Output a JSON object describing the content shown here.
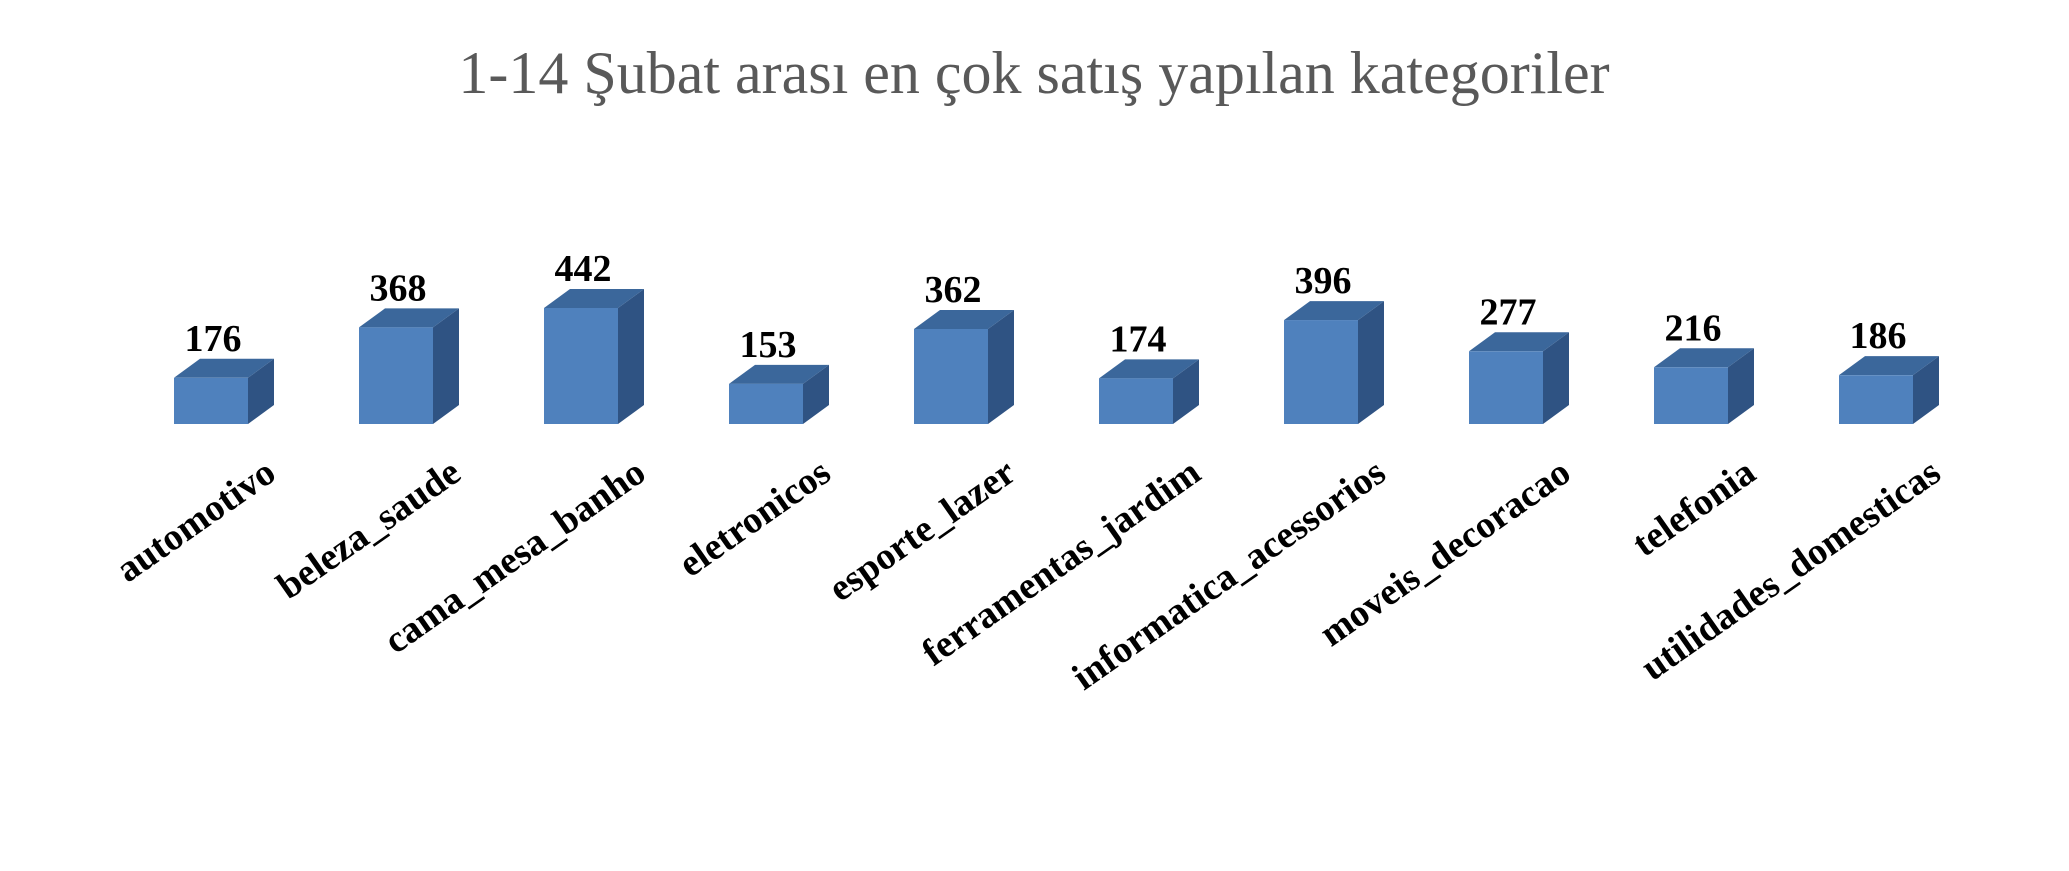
{
  "chart_data": {
    "type": "bar",
    "title": "1-14 Şubat arası en çok satış yapılan kategoriler",
    "categories": [
      "automotivo",
      "beleza_saude",
      "cama_mesa_banho",
      "eletronicos",
      "esporte_lazer",
      "ferramentas_jardim",
      "informatica_acessorios",
      "moveis_decoracao",
      "telefonia",
      "utilidades_domesticas"
    ],
    "values": [
      176,
      368,
      442,
      153,
      362,
      174,
      396,
      277,
      216,
      186
    ],
    "xlabel": "",
    "ylabel": "",
    "ylim": [
      0,
      442
    ],
    "grid": false,
    "legend": "none",
    "style": "3d-column",
    "colors": {
      "front": "#4f81bd",
      "top": "#3b679b",
      "side": "#2f5383",
      "title": "#595959",
      "labels": "#000000"
    }
  }
}
